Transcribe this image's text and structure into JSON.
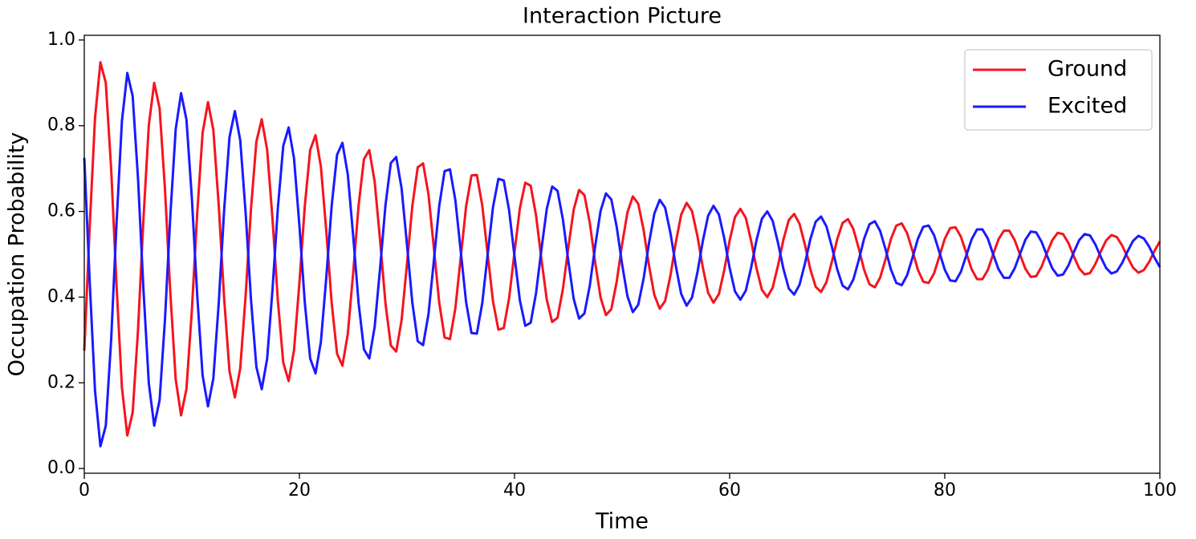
{
  "chart_data": {
    "type": "line",
    "title": "Interaction Picture",
    "x_label": "Time",
    "y_label": "Occupation Probability",
    "x": [
      0,
      0.5,
      1,
      1.5,
      2,
      2.5,
      3,
      3.5,
      4,
      4.5,
      5,
      5.5,
      6,
      6.5,
      7,
      7.5,
      8,
      8.5,
      9,
      9.5,
      10,
      10.5,
      11,
      11.5,
      12,
      12.5,
      13,
      13.5,
      14,
      14.5,
      15,
      15.5,
      16,
      16.5,
      17,
      17.5,
      18,
      18.5,
      19,
      19.5,
      20,
      20.5,
      21,
      21.5,
      22,
      22.5,
      23,
      23.5,
      24,
      24.5,
      25,
      25.5,
      26,
      26.5,
      27,
      27.5,
      28,
      28.5,
      29,
      29.5,
      30,
      30.5,
      31,
      31.5,
      32,
      32.5,
      33,
      33.5,
      34,
      34.5,
      35,
      35.5,
      36,
      36.5,
      37,
      37.5,
      38,
      38.5,
      39,
      39.5,
      40,
      40.5,
      41,
      41.5,
      42,
      42.5,
      43,
      43.5,
      44,
      44.5,
      45,
      45.5,
      46,
      46.5,
      47,
      47.5,
      48,
      48.5,
      49,
      49.5,
      50,
      50.5,
      51,
      51.5,
      52,
      52.5,
      53,
      53.5,
      54,
      54.5,
      55,
      55.5,
      56,
      56.5,
      57,
      57.5,
      58,
      58.5,
      59,
      59.5,
      60,
      60.5,
      61,
      61.5,
      62,
      62.5,
      63,
      63.5,
      64,
      64.5,
      65,
      65.5,
      66,
      66.5,
      67,
      67.5,
      68,
      68.5,
      69,
      69.5,
      70,
      70.5,
      71,
      71.5,
      72,
      72.5,
      73,
      73.5,
      74,
      74.5,
      75,
      75.5,
      76,
      76.5,
      77,
      77.5,
      78,
      78.5,
      79,
      79.5,
      80,
      80.5,
      81,
      81.5,
      82,
      82.5,
      83,
      83.5,
      84,
      84.5,
      85,
      85.5,
      86,
      86.5,
      87,
      87.5,
      88,
      88.5,
      89,
      89.5,
      90,
      90.5,
      91,
      91.5,
      92,
      92.5,
      93,
      93.5,
      94,
      94.5,
      95,
      95.5,
      96,
      96.5,
      97,
      97.5,
      98,
      98.5,
      99,
      99.5,
      100
    ],
    "series": [
      {
        "name": "Ground",
        "color": "#f5141e",
        "values": [
          0.275,
          0.562,
          0.819,
          0.948,
          0.9,
          0.699,
          0.427,
          0.189,
          0.077,
          0.131,
          0.325,
          0.582,
          0.801,
          0.9,
          0.841,
          0.653,
          0.41,
          0.208,
          0.124,
          0.186,
          0.368,
          0.596,
          0.783,
          0.855,
          0.79,
          0.614,
          0.398,
          0.227,
          0.166,
          0.234,
          0.403,
          0.606,
          0.763,
          0.815,
          0.744,
          0.582,
          0.391,
          0.247,
          0.204,
          0.276,
          0.433,
          0.612,
          0.743,
          0.778,
          0.704,
          0.554,
          0.387,
          0.268,
          0.24,
          0.314,
          0.457,
          0.613,
          0.722,
          0.743,
          0.669,
          0.533,
          0.386,
          0.287,
          0.273,
          0.346,
          0.477,
          0.613,
          0.703,
          0.712,
          0.64,
          0.515,
          0.387,
          0.306,
          0.302,
          0.374,
          0.493,
          0.612,
          0.684,
          0.685,
          0.614,
          0.501,
          0.39,
          0.324,
          0.328,
          0.398,
          0.505,
          0.608,
          0.667,
          0.66,
          0.591,
          0.489,
          0.394,
          0.342,
          0.352,
          0.419,
          0.515,
          0.604,
          0.65,
          0.638,
          0.573,
          0.481,
          0.399,
          0.358,
          0.372,
          0.436,
          0.523,
          0.598,
          0.635,
          0.618,
          0.557,
          0.474,
          0.405,
          0.373,
          0.391,
          0.451,
          0.528,
          0.593,
          0.62,
          0.601,
          0.543,
          0.47,
          0.41,
          0.387,
          0.407,
          0.463,
          0.532,
          0.587,
          0.606,
          0.585,
          0.531,
          0.467,
          0.417,
          0.4,
          0.422,
          0.474,
          0.534,
          0.58,
          0.594,
          0.571,
          0.522,
          0.465,
          0.424,
          0.412,
          0.435,
          0.482,
          0.535,
          0.573,
          0.582,
          0.559,
          0.514,
          0.464,
          0.43,
          0.423,
          0.446,
          0.489,
          0.536,
          0.567,
          0.572,
          0.549,
          0.508,
          0.464,
          0.436,
          0.433,
          0.455,
          0.495,
          0.536,
          0.561,
          0.563,
          0.541,
          0.503,
          0.465,
          0.442,
          0.442,
          0.463,
          0.5,
          0.535,
          0.555,
          0.555,
          0.533,
          0.499,
          0.466,
          0.447,
          0.449,
          0.471,
          0.503,
          0.533,
          0.55,
          0.547,
          0.526,
          0.495,
          0.467,
          0.453,
          0.456,
          0.477,
          0.506,
          0.532,
          0.545,
          0.54,
          0.52,
          0.493,
          0.469,
          0.457,
          0.463,
          0.482,
          0.508,
          0.53
        ]
      },
      {
        "name": "Excited",
        "color": "#1a1aff",
        "values": [
          0.725,
          0.438,
          0.181,
          0.052,
          0.1,
          0.301,
          0.573,
          0.811,
          0.923,
          0.869,
          0.675,
          0.418,
          0.199,
          0.1,
          0.159,
          0.347,
          0.59,
          0.792,
          0.876,
          0.814,
          0.632,
          0.404,
          0.217,
          0.145,
          0.21,
          0.386,
          0.602,
          0.773,
          0.834,
          0.766,
          0.597,
          0.394,
          0.237,
          0.185,
          0.256,
          0.418,
          0.609,
          0.753,
          0.796,
          0.724,
          0.567,
          0.388,
          0.257,
          0.222,
          0.296,
          0.446,
          0.613,
          0.732,
          0.76,
          0.686,
          0.543,
          0.387,
          0.278,
          0.257,
          0.331,
          0.467,
          0.614,
          0.713,
          0.727,
          0.654,
          0.523,
          0.387,
          0.297,
          0.288,
          0.36,
          0.485,
          0.613,
          0.694,
          0.698,
          0.626,
          0.507,
          0.388,
          0.316,
          0.315,
          0.386,
          0.499,
          0.61,
          0.676,
          0.672,
          0.602,
          0.495,
          0.392,
          0.333,
          0.34,
          0.409,
          0.511,
          0.606,
          0.658,
          0.648,
          0.581,
          0.485,
          0.396,
          0.35,
          0.362,
          0.427,
          0.519,
          0.601,
          0.642,
          0.628,
          0.564,
          0.477,
          0.402,
          0.365,
          0.382,
          0.443,
          0.526,
          0.595,
          0.627,
          0.609,
          0.549,
          0.472,
          0.407,
          0.38,
          0.399,
          0.457,
          0.53,
          0.59,
          0.613,
          0.593,
          0.537,
          0.468,
          0.413,
          0.394,
          0.415,
          0.469,
          0.533,
          0.583,
          0.6,
          0.578,
          0.526,
          0.466,
          0.42,
          0.406,
          0.429,
          0.478,
          0.535,
          0.576,
          0.588,
          0.565,
          0.518,
          0.465,
          0.427,
          0.418,
          0.441,
          0.486,
          0.536,
          0.57,
          0.577,
          0.554,
          0.511,
          0.464,
          0.433,
          0.428,
          0.451,
          0.492,
          0.536,
          0.564,
          0.567,
          0.545,
          0.505,
          0.464,
          0.439,
          0.437,
          0.459,
          0.497,
          0.535,
          0.558,
          0.558,
          0.537,
          0.5,
          0.465,
          0.445,
          0.445,
          0.467,
          0.501,
          0.534,
          0.553,
          0.551,
          0.529,
          0.497,
          0.467,
          0.45,
          0.453,
          0.474,
          0.505,
          0.533,
          0.547,
          0.544,
          0.523,
          0.494,
          0.468,
          0.455,
          0.46,
          0.48,
          0.507,
          0.531,
          0.543,
          0.537,
          0.518,
          0.492,
          0.47
        ]
      }
    ],
    "xlim": [
      0,
      100
    ],
    "xticks": [
      0,
      20,
      40,
      60,
      80,
      100
    ],
    "ylim": [
      -0.011,
      1.011
    ],
    "yticks": [
      {
        "value": 0,
        "label": "0.0"
      },
      0.2,
      0.4,
      0.6,
      0.8,
      {
        "value": 1,
        "label": "1.0"
      }
    ],
    "grid": false,
    "legend": "upper right"
  }
}
